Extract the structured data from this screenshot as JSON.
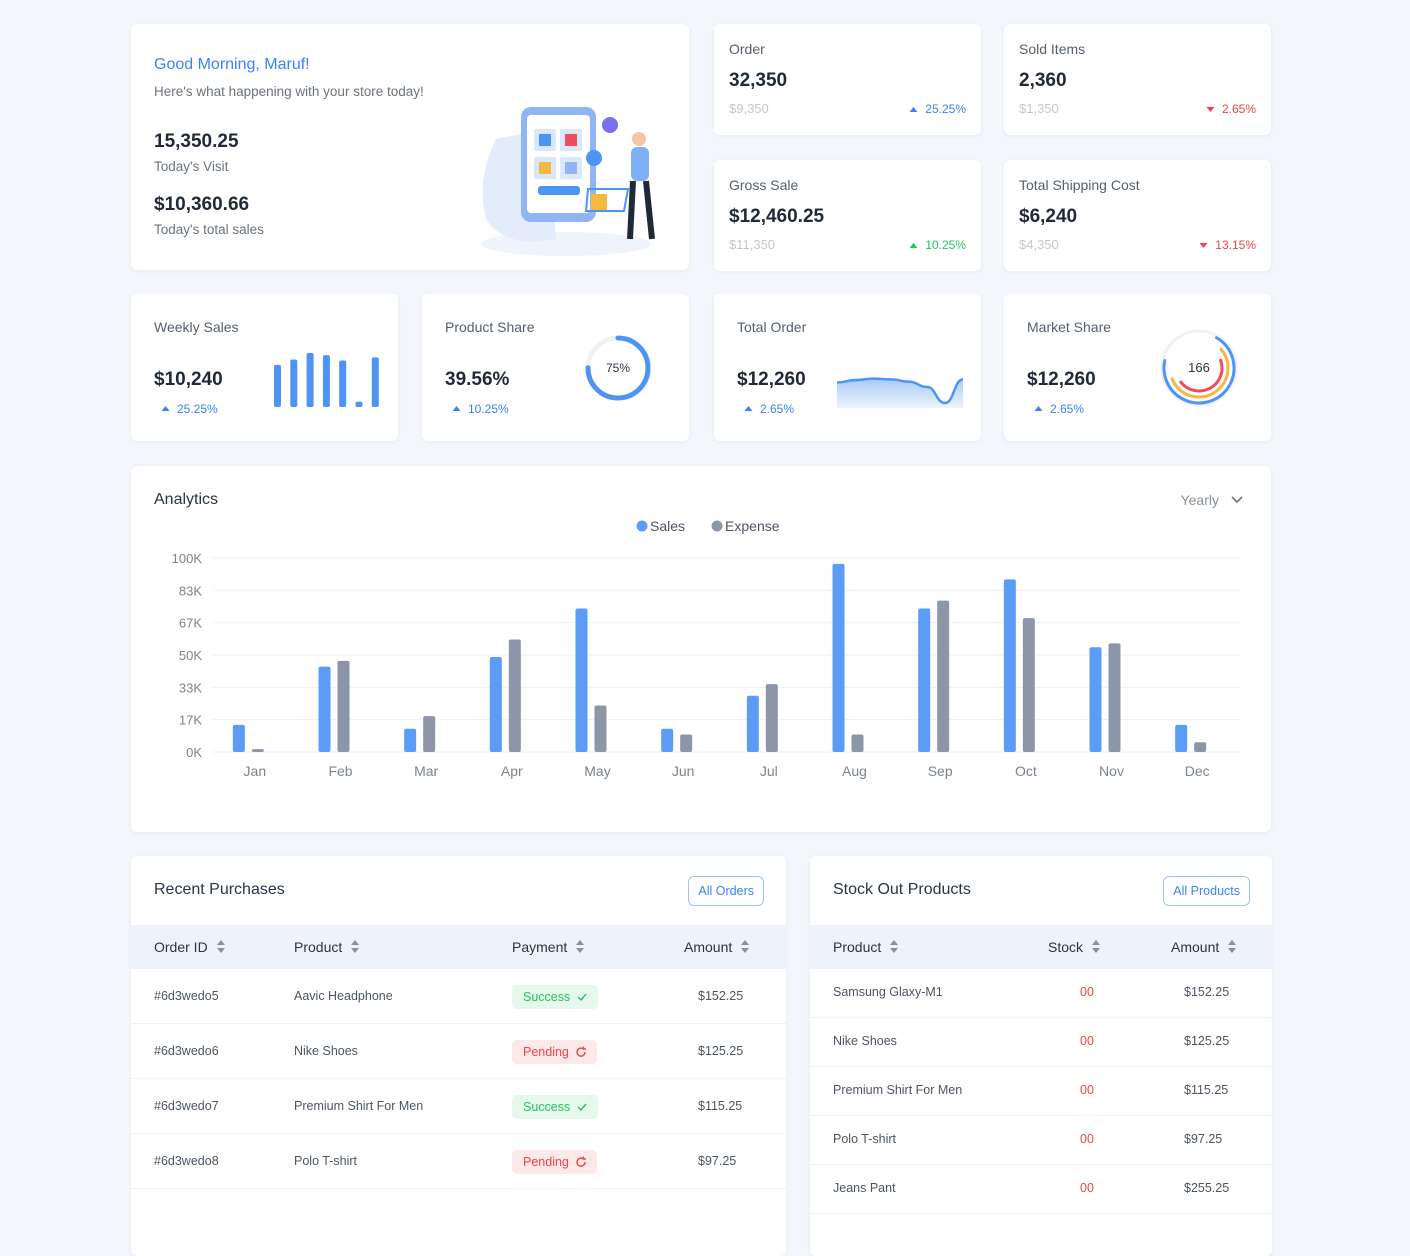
{
  "greeting": {
    "title": "Good Morning, Maruf!",
    "subtitle": "Here's what happening with your store today!",
    "visits": "15,350.25",
    "visits_label": "Today's Visit",
    "sales": "$10,360.66",
    "sales_label": "Today's total sales"
  },
  "stats": [
    {
      "label": "Order",
      "value": "32,350",
      "sub": "$9,350",
      "change": "25.25%",
      "trend": "up",
      "color": "#3b82f6"
    },
    {
      "label": "Sold Items",
      "value": "2,360",
      "sub": "$1,350",
      "change": "2.65%",
      "trend": "down",
      "color": "#ef4444"
    },
    {
      "label": "Gross Sale",
      "value": "$12,460.25",
      "sub": "$11,350",
      "change": "10.25%",
      "trend": "up",
      "color": "#22c55e"
    },
    {
      "label": "Total Shipping Cost",
      "value": "$6,240",
      "sub": "$4,350",
      "change": "13.15%",
      "trend": "down",
      "color": "#ef4444"
    }
  ],
  "widgets": [
    {
      "label": "Weekly Sales",
      "value": "$10,240",
      "change": "25.25%",
      "bars": [
        78,
        88,
        100,
        96,
        86,
        10,
        92
      ]
    },
    {
      "label": "Product Share",
      "value": "39.56%",
      "change": "10.25%",
      "donut": {
        "value": 75,
        "label": "75%"
      }
    },
    {
      "label": "Total Order",
      "value": "$12,260",
      "change": "2.65%",
      "line": [
        62,
        68,
        72,
        70,
        64,
        50,
        8,
        70
      ]
    },
    {
      "label": "Market Share",
      "value": "$12,260",
      "change": "2.65%",
      "center": "166",
      "rings": [
        {
          "value": 70,
          "color": "#4d94f5"
        },
        {
          "value": 55,
          "color": "#f5b841"
        },
        {
          "value": 45,
          "color": "#ef4c5c"
        }
      ]
    }
  ],
  "chart_data": {
    "type": "bar",
    "title": "Analytics",
    "filter": "Yearly",
    "categories": [
      "Jan",
      "Feb",
      "Mar",
      "Apr",
      "May",
      "Jun",
      "Jul",
      "Aug",
      "Sep",
      "Oct",
      "Nov",
      "Dec"
    ],
    "series": [
      {
        "name": "Sales",
        "color": "#5b9cf6",
        "values": [
          14,
          44,
          12,
          49,
          74,
          12,
          29,
          97,
          74,
          89,
          54,
          14
        ]
      },
      {
        "name": "Expense",
        "color": "#8d95a8",
        "values": [
          1.5,
          47,
          18.5,
          58,
          24,
          9,
          35,
          9,
          78,
          69,
          56,
          5
        ]
      }
    ],
    "ylim": [
      0,
      100
    ],
    "yticks": [
      {
        "value": 0,
        "label": "0K"
      },
      {
        "value": 16.67,
        "label": "17K"
      },
      {
        "value": 33.33,
        "label": "33K"
      },
      {
        "value": 50,
        "label": "50K"
      },
      {
        "value": 66.67,
        "label": "67K"
      },
      {
        "value": 83.33,
        "label": "83K"
      },
      {
        "value": 100,
        "label": "100K"
      }
    ],
    "grid": true
  },
  "recent_purchases": {
    "title": "Recent Purchases",
    "button": "All Orders",
    "columns": [
      "Order ID",
      "Product",
      "Payment",
      "Amount"
    ],
    "rows": [
      {
        "cells": [
          "#6d3wedo5",
          "Aavic Headphone",
          "Success",
          "$152.25"
        ],
        "tone": "success"
      },
      {
        "cells": [
          "#6d3wedo6",
          "Nike Shoes",
          "Pending",
          "$125.25"
        ],
        "tone": "pending"
      },
      {
        "cells": [
          "#6d3wedo7",
          "Premium Shirt For Men",
          "Success",
          "$115.25"
        ],
        "tone": "success"
      },
      {
        "cells": [
          "#6d3wedo8",
          "Polo T-shirt",
          "Pending",
          "$97.25"
        ],
        "tone": "pending"
      }
    ]
  },
  "stock_out": {
    "title": "Stock Out Products",
    "button": "All Products",
    "columns": [
      "Product",
      "Stock",
      "Amount"
    ],
    "rows": [
      [
        "Samsung Glaxy-M1",
        "00",
        "$152.25"
      ],
      [
        "Nike Shoes",
        "00",
        "$125.25"
      ],
      [
        "Premium Shirt For Men",
        "00",
        "$115.25"
      ],
      [
        "Polo T-shirt",
        "00",
        "$97.25"
      ],
      [
        "Jeans Pant",
        "00",
        "$255.25"
      ]
    ]
  }
}
